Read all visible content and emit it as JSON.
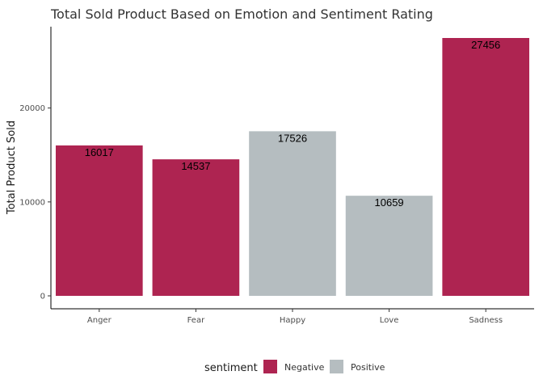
{
  "chart_data": {
    "type": "bar",
    "title": "Total Sold Product Based on Emotion and Sentiment Rating",
    "xlabel": "",
    "ylabel": "Total Product Sold",
    "categories": [
      "Anger",
      "Fear",
      "Happy",
      "Love",
      "Sadness"
    ],
    "values": [
      16017,
      14537,
      17526,
      10659,
      27456
    ],
    "sentiment": [
      "Negative",
      "Negative",
      "Positive",
      "Positive",
      "Negative"
    ],
    "ylim": [
      0,
      28800
    ],
    "yticks": [
      0,
      10000,
      20000
    ],
    "grid": false,
    "legend": {
      "title": "sentiment",
      "position": "bottom",
      "entries": [
        {
          "name": "Negative",
          "color": "#AE2451"
        },
        {
          "name": "Positive",
          "color": "#B5BDC0"
        }
      ]
    }
  }
}
